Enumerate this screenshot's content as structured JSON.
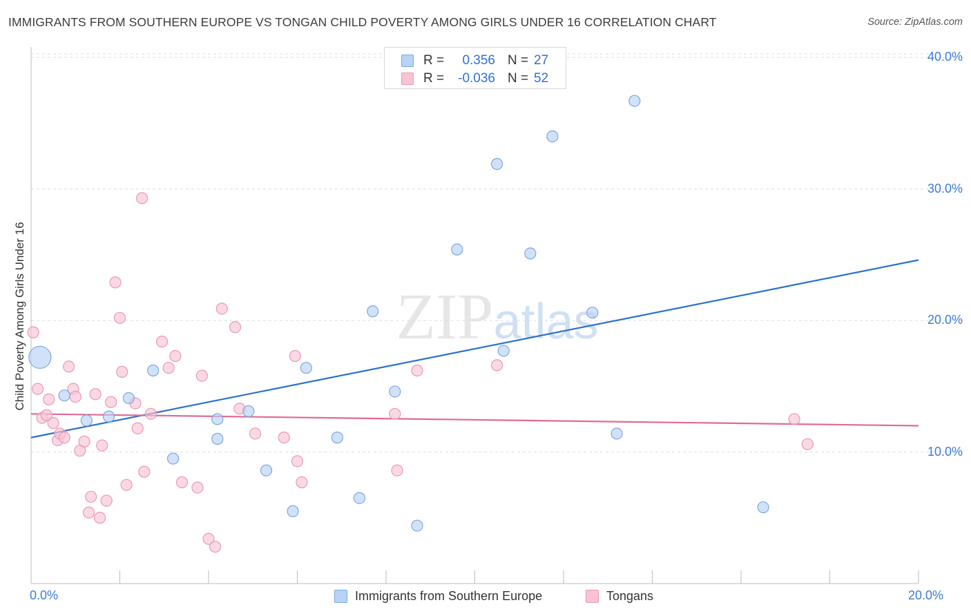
{
  "header": {
    "title": "IMMIGRANTS FROM SOUTHERN EUROPE VS TONGAN CHILD POVERTY AMONG GIRLS UNDER 16 CORRELATION CHART",
    "source": "Source: ZipAtlas.com"
  },
  "watermark": "ZIPatlas",
  "colors": {
    "blue_fill": "#b8d3f5",
    "blue_stroke": "#7aa6e0",
    "blue_line": "#2b6fcf",
    "pink_fill": "#f8c4d5",
    "pink_stroke": "#e899b2",
    "pink_line": "#e06a93",
    "tick_text": "#3a7bd5",
    "grid": "#dcdcdc"
  },
  "legend": {
    "series": [
      {
        "r_label": "R =",
        "r_value": "0.356",
        "n_label": "N =",
        "n_value": "27"
      },
      {
        "r_label": "R =",
        "r_value": "-0.036",
        "n_label": "N =",
        "n_value": "52"
      }
    ],
    "bottom": [
      "Immigrants from Southern Europe",
      "Tongans"
    ]
  },
  "chart_data": {
    "type": "scatter",
    "title": "IMMIGRANTS FROM SOUTHERN EUROPE VS TONGAN CHILD POVERTY AMONG GIRLS UNDER 16 CORRELATION CHART",
    "xlabel": "",
    "ylabel": "Child Poverty Among Girls Under 16",
    "xlim": [
      0,
      20
    ],
    "ylim": [
      0,
      40.8
    ],
    "x_tick_labels": [
      {
        "value": 0,
        "label": "0.0%"
      },
      {
        "value": 20,
        "label": "20.0%"
      }
    ],
    "y_tick_labels": [
      {
        "value": 10,
        "label": "10.0%"
      },
      {
        "value": 20,
        "label": "20.0%"
      },
      {
        "value": 30,
        "label": "30.0%"
      },
      {
        "value": 40,
        "label": "40.0%"
      }
    ],
    "series": [
      {
        "name": "Immigrants from Southern Europe",
        "color": "blue",
        "r": 0.356,
        "n": 27,
        "trendline": {
          "x": [
            0,
            20
          ],
          "y": [
            11.1,
            24.6
          ]
        },
        "points": [
          {
            "x": 0.2,
            "y": 17.2,
            "big": true
          },
          {
            "x": 0.75,
            "y": 14.3
          },
          {
            "x": 1.25,
            "y": 12.4
          },
          {
            "x": 1.75,
            "y": 12.7
          },
          {
            "x": 2.2,
            "y": 14.1
          },
          {
            "x": 2.75,
            "y": 16.2
          },
          {
            "x": 3.2,
            "y": 9.5
          },
          {
            "x": 4.2,
            "y": 12.5
          },
          {
            "x": 4.2,
            "y": 11.0
          },
          {
            "x": 4.9,
            "y": 13.1
          },
          {
            "x": 5.3,
            "y": 8.6
          },
          {
            "x": 5.9,
            "y": 5.5
          },
          {
            "x": 6.2,
            "y": 16.4
          },
          {
            "x": 6.9,
            "y": 11.1
          },
          {
            "x": 7.4,
            "y": 6.5
          },
          {
            "x": 7.7,
            "y": 20.7
          },
          {
            "x": 8.2,
            "y": 14.6
          },
          {
            "x": 8.7,
            "y": 4.4
          },
          {
            "x": 9.6,
            "y": 25.4
          },
          {
            "x": 10.5,
            "y": 31.9
          },
          {
            "x": 10.65,
            "y": 17.7
          },
          {
            "x": 11.25,
            "y": 25.1
          },
          {
            "x": 11.75,
            "y": 34.0
          },
          {
            "x": 12.65,
            "y": 20.6
          },
          {
            "x": 13.2,
            "y": 11.4
          },
          {
            "x": 13.6,
            "y": 36.7
          },
          {
            "x": 16.5,
            "y": 5.8
          }
        ]
      },
      {
        "name": "Tongans",
        "color": "pink",
        "r": -0.036,
        "n": 52,
        "trendline": {
          "x": [
            0,
            20
          ],
          "y": [
            12.9,
            12.0
          ]
        },
        "points": [
          {
            "x": 0.05,
            "y": 19.1
          },
          {
            "x": 0.15,
            "y": 14.8
          },
          {
            "x": 0.25,
            "y": 12.6
          },
          {
            "x": 0.35,
            "y": 12.8
          },
          {
            "x": 0.4,
            "y": 14.0
          },
          {
            "x": 0.5,
            "y": 12.2
          },
          {
            "x": 0.6,
            "y": 10.9
          },
          {
            "x": 0.65,
            "y": 11.4
          },
          {
            "x": 0.75,
            "y": 11.1
          },
          {
            "x": 0.85,
            "y": 16.5
          },
          {
            "x": 0.95,
            "y": 14.8
          },
          {
            "x": 1.0,
            "y": 14.2
          },
          {
            "x": 1.1,
            "y": 10.1
          },
          {
            "x": 1.2,
            "y": 10.8
          },
          {
            "x": 1.35,
            "y": 6.6
          },
          {
            "x": 1.3,
            "y": 5.4
          },
          {
            "x": 1.45,
            "y": 14.4
          },
          {
            "x": 1.55,
            "y": 5.0
          },
          {
            "x": 1.6,
            "y": 10.5
          },
          {
            "x": 1.7,
            "y": 6.3
          },
          {
            "x": 1.8,
            "y": 13.8
          },
          {
            "x": 1.9,
            "y": 22.9
          },
          {
            "x": 2.0,
            "y": 20.2
          },
          {
            "x": 2.05,
            "y": 16.1
          },
          {
            "x": 2.15,
            "y": 7.5
          },
          {
            "x": 2.35,
            "y": 13.7
          },
          {
            "x": 2.4,
            "y": 11.8
          },
          {
            "x": 2.5,
            "y": 29.3
          },
          {
            "x": 2.55,
            "y": 8.5
          },
          {
            "x": 2.7,
            "y": 12.9
          },
          {
            "x": 2.95,
            "y": 18.4
          },
          {
            "x": 3.1,
            "y": 16.4
          },
          {
            "x": 3.25,
            "y": 17.3
          },
          {
            "x": 3.4,
            "y": 7.7
          },
          {
            "x": 3.75,
            "y": 7.3
          },
          {
            "x": 3.85,
            "y": 15.8
          },
          {
            "x": 4.0,
            "y": 3.4
          },
          {
            "x": 4.15,
            "y": 2.8
          },
          {
            "x": 4.3,
            "y": 20.9
          },
          {
            "x": 4.6,
            "y": 19.5
          },
          {
            "x": 4.7,
            "y": 13.3
          },
          {
            "x": 5.05,
            "y": 11.4
          },
          {
            "x": 5.7,
            "y": 11.1
          },
          {
            "x": 5.95,
            "y": 17.3
          },
          {
            "x": 6.0,
            "y": 9.3
          },
          {
            "x": 6.1,
            "y": 7.7
          },
          {
            "x": 8.2,
            "y": 12.9
          },
          {
            "x": 8.25,
            "y": 8.6
          },
          {
            "x": 8.7,
            "y": 16.2
          },
          {
            "x": 10.5,
            "y": 16.6
          },
          {
            "x": 17.2,
            "y": 12.5
          },
          {
            "x": 17.5,
            "y": 10.6
          }
        ]
      }
    ]
  }
}
